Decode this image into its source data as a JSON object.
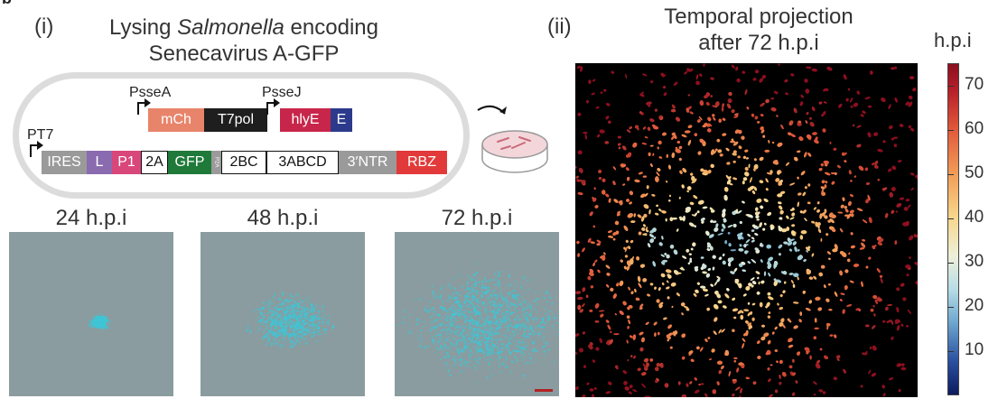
{
  "top_mark": "b",
  "panel_i": {
    "label": "(i)",
    "title_line1_pre": "Lysing ",
    "title_line1_italic": "Salmonella",
    "title_line1_post": " encoding",
    "title_line2": "Senecavirus A-GFP",
    "promoters": {
      "psseA": "PsseA",
      "psseJ": "PsseJ",
      "pt7": "PT7"
    },
    "row1": [
      {
        "label": "mCh",
        "color": "#e8846a",
        "text_color": "#ffffff"
      },
      {
        "label": "T7pol",
        "color": "#1e1e1e",
        "text_color": "#ffffff"
      }
    ],
    "row2": [
      {
        "label": "hlyE",
        "color": "#c8254a",
        "text_color": "#ffffff"
      },
      {
        "label": "E",
        "color": "#2c3a8c",
        "text_color": "#ffffff"
      }
    ],
    "genome": [
      {
        "label": "IRES",
        "color": "#9a9a9a",
        "text_color": "#ffffff"
      },
      {
        "label": "L",
        "color": "#8a6bb0",
        "text_color": "#ffffff"
      },
      {
        "label": "P1",
        "color": "#d9467a",
        "text_color": "#ffffff"
      },
      {
        "label": "2A",
        "color": "#ffffff",
        "text_color": "#111111"
      },
      {
        "label": "GFP",
        "color": "#1f7a3a",
        "text_color": "#ffffff"
      },
      {
        "label": "P2A",
        "color": "#9a9a9a",
        "text_color": "#ffffff"
      },
      {
        "label": "2BC",
        "color": "#ffffff",
        "text_color": "#111111"
      },
      {
        "label": "3ABCD",
        "color": "#ffffff",
        "text_color": "#111111"
      },
      {
        "label": "3′NTR",
        "color": "#9a9a9a",
        "text_color": "#ffffff"
      },
      {
        "label": "RBZ",
        "color": "#e23a3a",
        "text_color": "#ffffff"
      }
    ],
    "timepoints": [
      {
        "label": "24 h.p.i",
        "spread": 0.12
      },
      {
        "label": "48 h.p.i",
        "spread": 0.45
      },
      {
        "label": "72 h.p.i",
        "spread": 0.85
      }
    ]
  },
  "panel_ii": {
    "label": "(ii)",
    "title_line1": "Temporal projection",
    "title_line2": "after 72 h.p.i",
    "colorbar_title": "h.p.i",
    "colorbar_ticks": [
      "70",
      "60",
      "50",
      "40",
      "30",
      "20",
      "10"
    ],
    "colorbar_range": [
      0,
      75
    ]
  },
  "colors": {
    "plasmid_outline": "#dcdcdc",
    "dish_fill": "#f3d6da",
    "dish_outline": "#999999",
    "micro_bg": "#8a9c9f",
    "micro_cell": "#3cc7d8",
    "scale_bar": "#b22222"
  }
}
